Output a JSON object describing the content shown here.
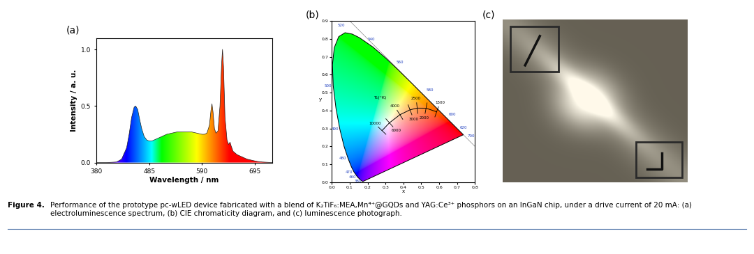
{
  "chart_data": [
    {
      "type": "line",
      "panel_label": "(a)",
      "x_label": "Wavelength / nm",
      "y_label": "Intensity / a. u.",
      "x": [
        380,
        400,
        420,
        430,
        440,
        445,
        450,
        455,
        458,
        462,
        466,
        470,
        475,
        480,
        485,
        490,
        500,
        510,
        520,
        530,
        540,
        550,
        560,
        570,
        580,
        590,
        595,
        600,
        605,
        608,
        610,
        612,
        615,
        618,
        622,
        626,
        629,
        631,
        633,
        636,
        640,
        643,
        646,
        648,
        652,
        660,
        670,
        680,
        690,
        700,
        710,
        730
      ],
      "values": [
        0.0,
        0.0,
        0.005,
        0.03,
        0.13,
        0.25,
        0.4,
        0.49,
        0.5,
        0.47,
        0.38,
        0.3,
        0.23,
        0.2,
        0.19,
        0.19,
        0.21,
        0.23,
        0.25,
        0.26,
        0.27,
        0.27,
        0.27,
        0.27,
        0.26,
        0.25,
        0.25,
        0.26,
        0.33,
        0.46,
        0.52,
        0.45,
        0.3,
        0.26,
        0.28,
        0.5,
        0.85,
        1.0,
        0.85,
        0.4,
        0.2,
        0.16,
        0.18,
        0.15,
        0.1,
        0.07,
        0.05,
        0.03,
        0.02,
        0.01,
        0.005,
        0.0
      ],
      "xlim": [
        380,
        730
      ],
      "ylim": [
        0.0,
        1.1
      ],
      "xticks": [
        380,
        485,
        590,
        695
      ],
      "yticks": [
        0.0,
        0.5,
        1.0
      ]
    },
    {
      "type": "chromaticity",
      "panel_label": "(b)",
      "x_label": "x",
      "y_label": "y",
      "spectral_locus": {
        "wavelength": [
          380,
          420,
          440,
          450,
          460,
          470,
          475,
          480,
          485,
          490,
          495,
          500,
          505,
          510,
          515,
          520,
          525,
          530,
          540,
          550,
          560,
          570,
          580,
          590,
          600,
          610,
          620,
          640,
          700
        ],
        "x": [
          0.1741,
          0.1714,
          0.1644,
          0.1566,
          0.144,
          0.1241,
          0.1096,
          0.0913,
          0.0687,
          0.0454,
          0.0235,
          0.0082,
          0.0039,
          0.0139,
          0.0389,
          0.0743,
          0.1142,
          0.1547,
          0.2296,
          0.3016,
          0.3731,
          0.4441,
          0.5125,
          0.5752,
          0.627,
          0.6658,
          0.6915,
          0.719,
          0.7347
        ],
        "y": [
          0.005,
          0.0051,
          0.0109,
          0.0177,
          0.0297,
          0.0578,
          0.0868,
          0.1327,
          0.2007,
          0.295,
          0.4127,
          0.5384,
          0.6548,
          0.7502,
          0.812,
          0.8338,
          0.8262,
          0.8059,
          0.7543,
          0.6923,
          0.6245,
          0.5547,
          0.4866,
          0.4242,
          0.3725,
          0.334,
          0.3083,
          0.2809,
          0.2653
        ]
      },
      "labeled_wavelengths": [
        380,
        460,
        470,
        480,
        490,
        500,
        520,
        540,
        560,
        580,
        600,
        620,
        700
      ],
      "planckian_locus": {
        "temperature": [
          10000,
          6000,
          4000,
          3000,
          2500,
          2000,
          1500
        ],
        "x": [
          0.2807,
          0.3221,
          0.3805,
          0.4369,
          0.477,
          0.5267,
          0.5857
        ],
        "y": [
          0.2884,
          0.3318,
          0.3768,
          0.4041,
          0.4137,
          0.4133,
          0.3931
        ]
      },
      "planckian_label": "Tc(°K)",
      "xlim": [
        0.0,
        0.8
      ],
      "ylim": [
        0.0,
        0.9
      ],
      "xticks": [
        0.0,
        0.1,
        0.2,
        0.3,
        0.4,
        0.5,
        0.6,
        0.7,
        0.8
      ],
      "yticks": [
        0.0,
        0.1,
        0.2,
        0.3,
        0.4,
        0.5,
        0.6,
        0.7,
        0.8,
        0.9
      ]
    }
  ],
  "photo": {
    "panel_label": "(c)"
  },
  "caption": {
    "label": "Figure 4.",
    "text": "Performance of the prototype pc-wLED device fabricated with a blend of K₂TiF₆:MEA,Mn⁴⁺@GQDs and YAG:Ce³⁺ phosphors on an InGaN chip, under a drive current of 20 mA: (a) electroluminescence spectrum, (b) CIE chromaticity diagram, and (c) luminescence photograph."
  }
}
